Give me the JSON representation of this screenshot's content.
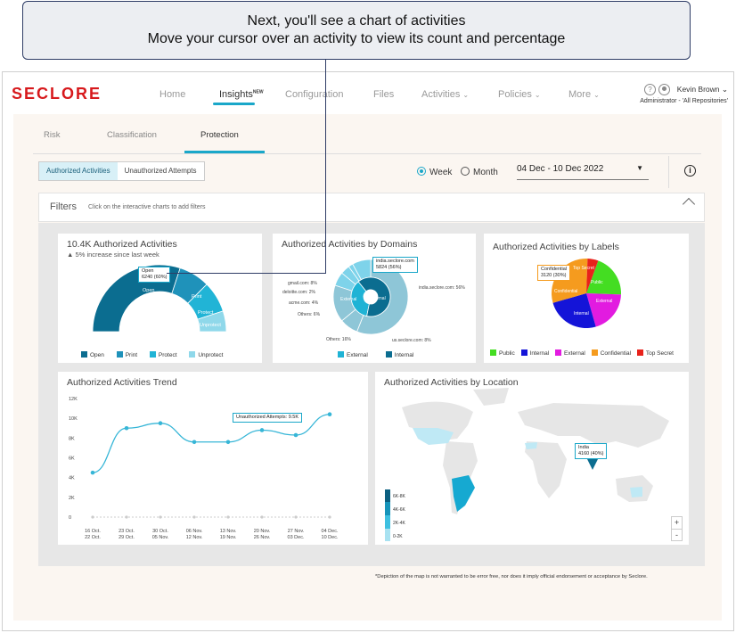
{
  "callout": {
    "line1": "Next, you'll see a chart of activities",
    "line2": "Move your cursor over an activity to view its count and percentage"
  },
  "brand": {
    "logo": "SECLORE",
    "accent": "#1aa7c9",
    "logo_color": "#d7191c"
  },
  "nav": {
    "home": "Home",
    "insights": "Insights",
    "insights_badge": "NEW",
    "configuration": "Configuration",
    "files": "Files",
    "activities": "Activities",
    "policies": "Policies",
    "more": "More"
  },
  "user": {
    "name": "Kevin Brown",
    "role": "Administrator - 'All Repositories'"
  },
  "subtabs": {
    "risk": "Risk",
    "classification": "Classification",
    "protection": "Protection"
  },
  "segment": {
    "authorized": "Authorized Activities",
    "unauthorized": "Unauthorized Attempts"
  },
  "period": {
    "week": "Week",
    "month": "Month",
    "selected": "Week",
    "range": "04 Dec - 10 Dec 2022"
  },
  "filters": {
    "title": "Filters",
    "hint": "Click on the interactive charts to add filters"
  },
  "card_activities": {
    "title": "10.4K Authorized Activities",
    "subtitle": "5% increase since last week",
    "tooltip_l1": "Open",
    "tooltip_l2": "6240 (60%)",
    "label_open": "Open",
    "label_print": "Print",
    "label_protect": "Protect",
    "label_unprotect": "Unprotect",
    "legend": [
      "Open",
      "Print",
      "Protect",
      "Unprotect"
    ]
  },
  "card_domains": {
    "title": "Authorized Activities by Domains",
    "tooltip_l1": "india.seclore.com",
    "tooltip_l2": "5824 (56%)",
    "inner_ext": "External",
    "inner_int": "Internal",
    "legend": [
      "External",
      "Internal"
    ],
    "labels": {
      "gmail": "gmail.com: 8%",
      "deloitte": "deloitte.com: 2%",
      "acme": "acme.com: 4%",
      "others6": "Others: 6%",
      "others16": "Others: 16%",
      "india": "india.seclore.com: 56%",
      "us": "us.seclore.com: 8%"
    }
  },
  "card_labels": {
    "title": "Authorized Activities by Labels",
    "tooltip_l1": "Confidential",
    "tooltip_l2": "3120 (30%)",
    "slice_public": "Public",
    "slice_external": "External",
    "slice_internal": "Internal",
    "slice_confidential": "Confidential",
    "slice_topsecret": "Top Secret",
    "legend": [
      "Public",
      "Internal",
      "External",
      "Confidential",
      "Top Secret"
    ]
  },
  "card_trend": {
    "title": "Authorized Activities Trend",
    "tooltip": "Unauthorized Attempts: 9.5K"
  },
  "card_location": {
    "title": "Authorized Activities by Location",
    "tooltip_l1": "India",
    "tooltip_l2": "4160 (40%)",
    "legend": [
      "6K-8K",
      "4K-6K",
      "2K-4K",
      "0-2K"
    ],
    "zoom_in": "+",
    "zoom_out": "-"
  },
  "footnote": "*Depiction of the map is not warranted to be error free, nor does it imply official endorsement or acceptance by Seclore.",
  "chart_data": [
    {
      "type": "pie",
      "title": "10.4K Authorized Activities",
      "categories": [
        "Open",
        "Print",
        "Protect",
        "Unprotect"
      ],
      "values": [
        60,
        15,
        15,
        10
      ],
      "colors": [
        "#0b6d90",
        "#1f92ba",
        "#21b4d6",
        "#8fd8ea"
      ]
    },
    {
      "type": "pie",
      "title": "Authorized Activities by Domains",
      "categories": [
        "External",
        "Internal"
      ],
      "values": [
        36,
        64
      ],
      "colors": [
        "#1fb3d5",
        "#0b6d90"
      ]
    },
    {
      "type": "pie",
      "title": "Authorized Activities by Labels",
      "categories": [
        "Public",
        "External",
        "Internal",
        "Confidential",
        "Top Secret"
      ],
      "values": [
        20,
        20,
        25,
        30,
        5
      ],
      "colors": [
        "#44dd22",
        "#e21be0",
        "#1414d8",
        "#f59b1e",
        "#e8221b"
      ]
    },
    {
      "type": "line",
      "title": "Authorized Activities Trend",
      "x": [
        "16 Oct. 22 Oct.",
        "23 Oct. 29 Oct.",
        "30 Oct. 05 Nov.",
        "06 Nov. 12 Nov.",
        "13 Nov. 19 Nov.",
        "20 Nov. 26 Nov.",
        "27 Nov. 03 Dec.",
        "04 Dec. 10 Dec."
      ],
      "x_top": [
        "16 Oct.",
        "23 Oct.",
        "30 Oct.",
        "06 Nov.",
        "13 Nov.",
        "20 Nov.",
        "27 Nov.",
        "04 Dec."
      ],
      "x_bottom": [
        "22 Oct.",
        "29 Oct.",
        "05 Nov.",
        "12 Nov.",
        "19 Nov.",
        "26 Nov.",
        "03 Dec.",
        "10 Dec."
      ],
      "values": [
        4500,
        9000,
        9500,
        7600,
        7600,
        8800,
        8300,
        10400
      ],
      "yticks": [
        "0",
        "2K",
        "4K",
        "6K",
        "8K",
        "10K",
        "12K"
      ],
      "ylim": [
        0,
        12000
      ]
    }
  ]
}
